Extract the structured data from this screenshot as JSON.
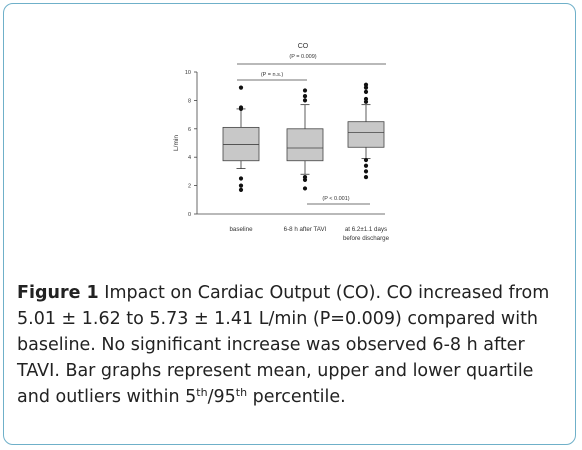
{
  "chart_data": {
    "type": "box",
    "title": "CO",
    "ylabel": "L/min",
    "ylim": [
      0,
      10
    ],
    "yticks": [
      "0",
      "2",
      "4",
      "6",
      "8",
      "10"
    ],
    "categories": [
      [
        "baseline"
      ],
      [
        "6-8 h after TAVI"
      ],
      [
        "at 6.2±1.1 days",
        "before discharge"
      ]
    ],
    "boxes": [
      {
        "p5": 3.2,
        "q1": 3.75,
        "median": 4.9,
        "q3": 6.1,
        "p95": 7.4,
        "outliers": [
          1.7,
          2.0,
          2.5,
          7.4,
          7.5,
          8.9
        ]
      },
      {
        "p5": 2.8,
        "q1": 3.75,
        "median": 4.65,
        "q3": 6.0,
        "p95": 7.7,
        "outliers": [
          1.8,
          2.4,
          2.6,
          8.0,
          8.3,
          8.7
        ]
      },
      {
        "p5": 3.9,
        "q1": 4.7,
        "median": 5.75,
        "q3": 6.5,
        "p95": 7.7,
        "outliers": [
          2.6,
          3.0,
          3.4,
          3.8,
          7.9,
          8.1,
          8.6,
          8.9,
          9.1
        ]
      }
    ],
    "annotations": [
      {
        "text": "(P = 0.009)",
        "from": 0,
        "to": 2
      },
      {
        "text": "(P = n.s.)",
        "from": 0,
        "to": 1
      },
      {
        "text": "(P < 0.001)",
        "from": 1,
        "to": 2
      }
    ],
    "colors": {
      "box": "#c8c8c8",
      "frame": "#6fb0c9"
    }
  },
  "caption": {
    "label": "Figure 1",
    "part1": " Impact on Cardiac Output (CO). CO increased from 5.01 ± 1.62 to 5.73 ± 1.41 L/min (P=0.009) compared with baseline. No significant increase was observed 6-8 h after TAVI. Bar graphs represent mean, upper and lower quartile and outliers within 5",
    "sup1": "th",
    "part2": "/95",
    "sup2": "th",
    "part3": " percentile."
  }
}
